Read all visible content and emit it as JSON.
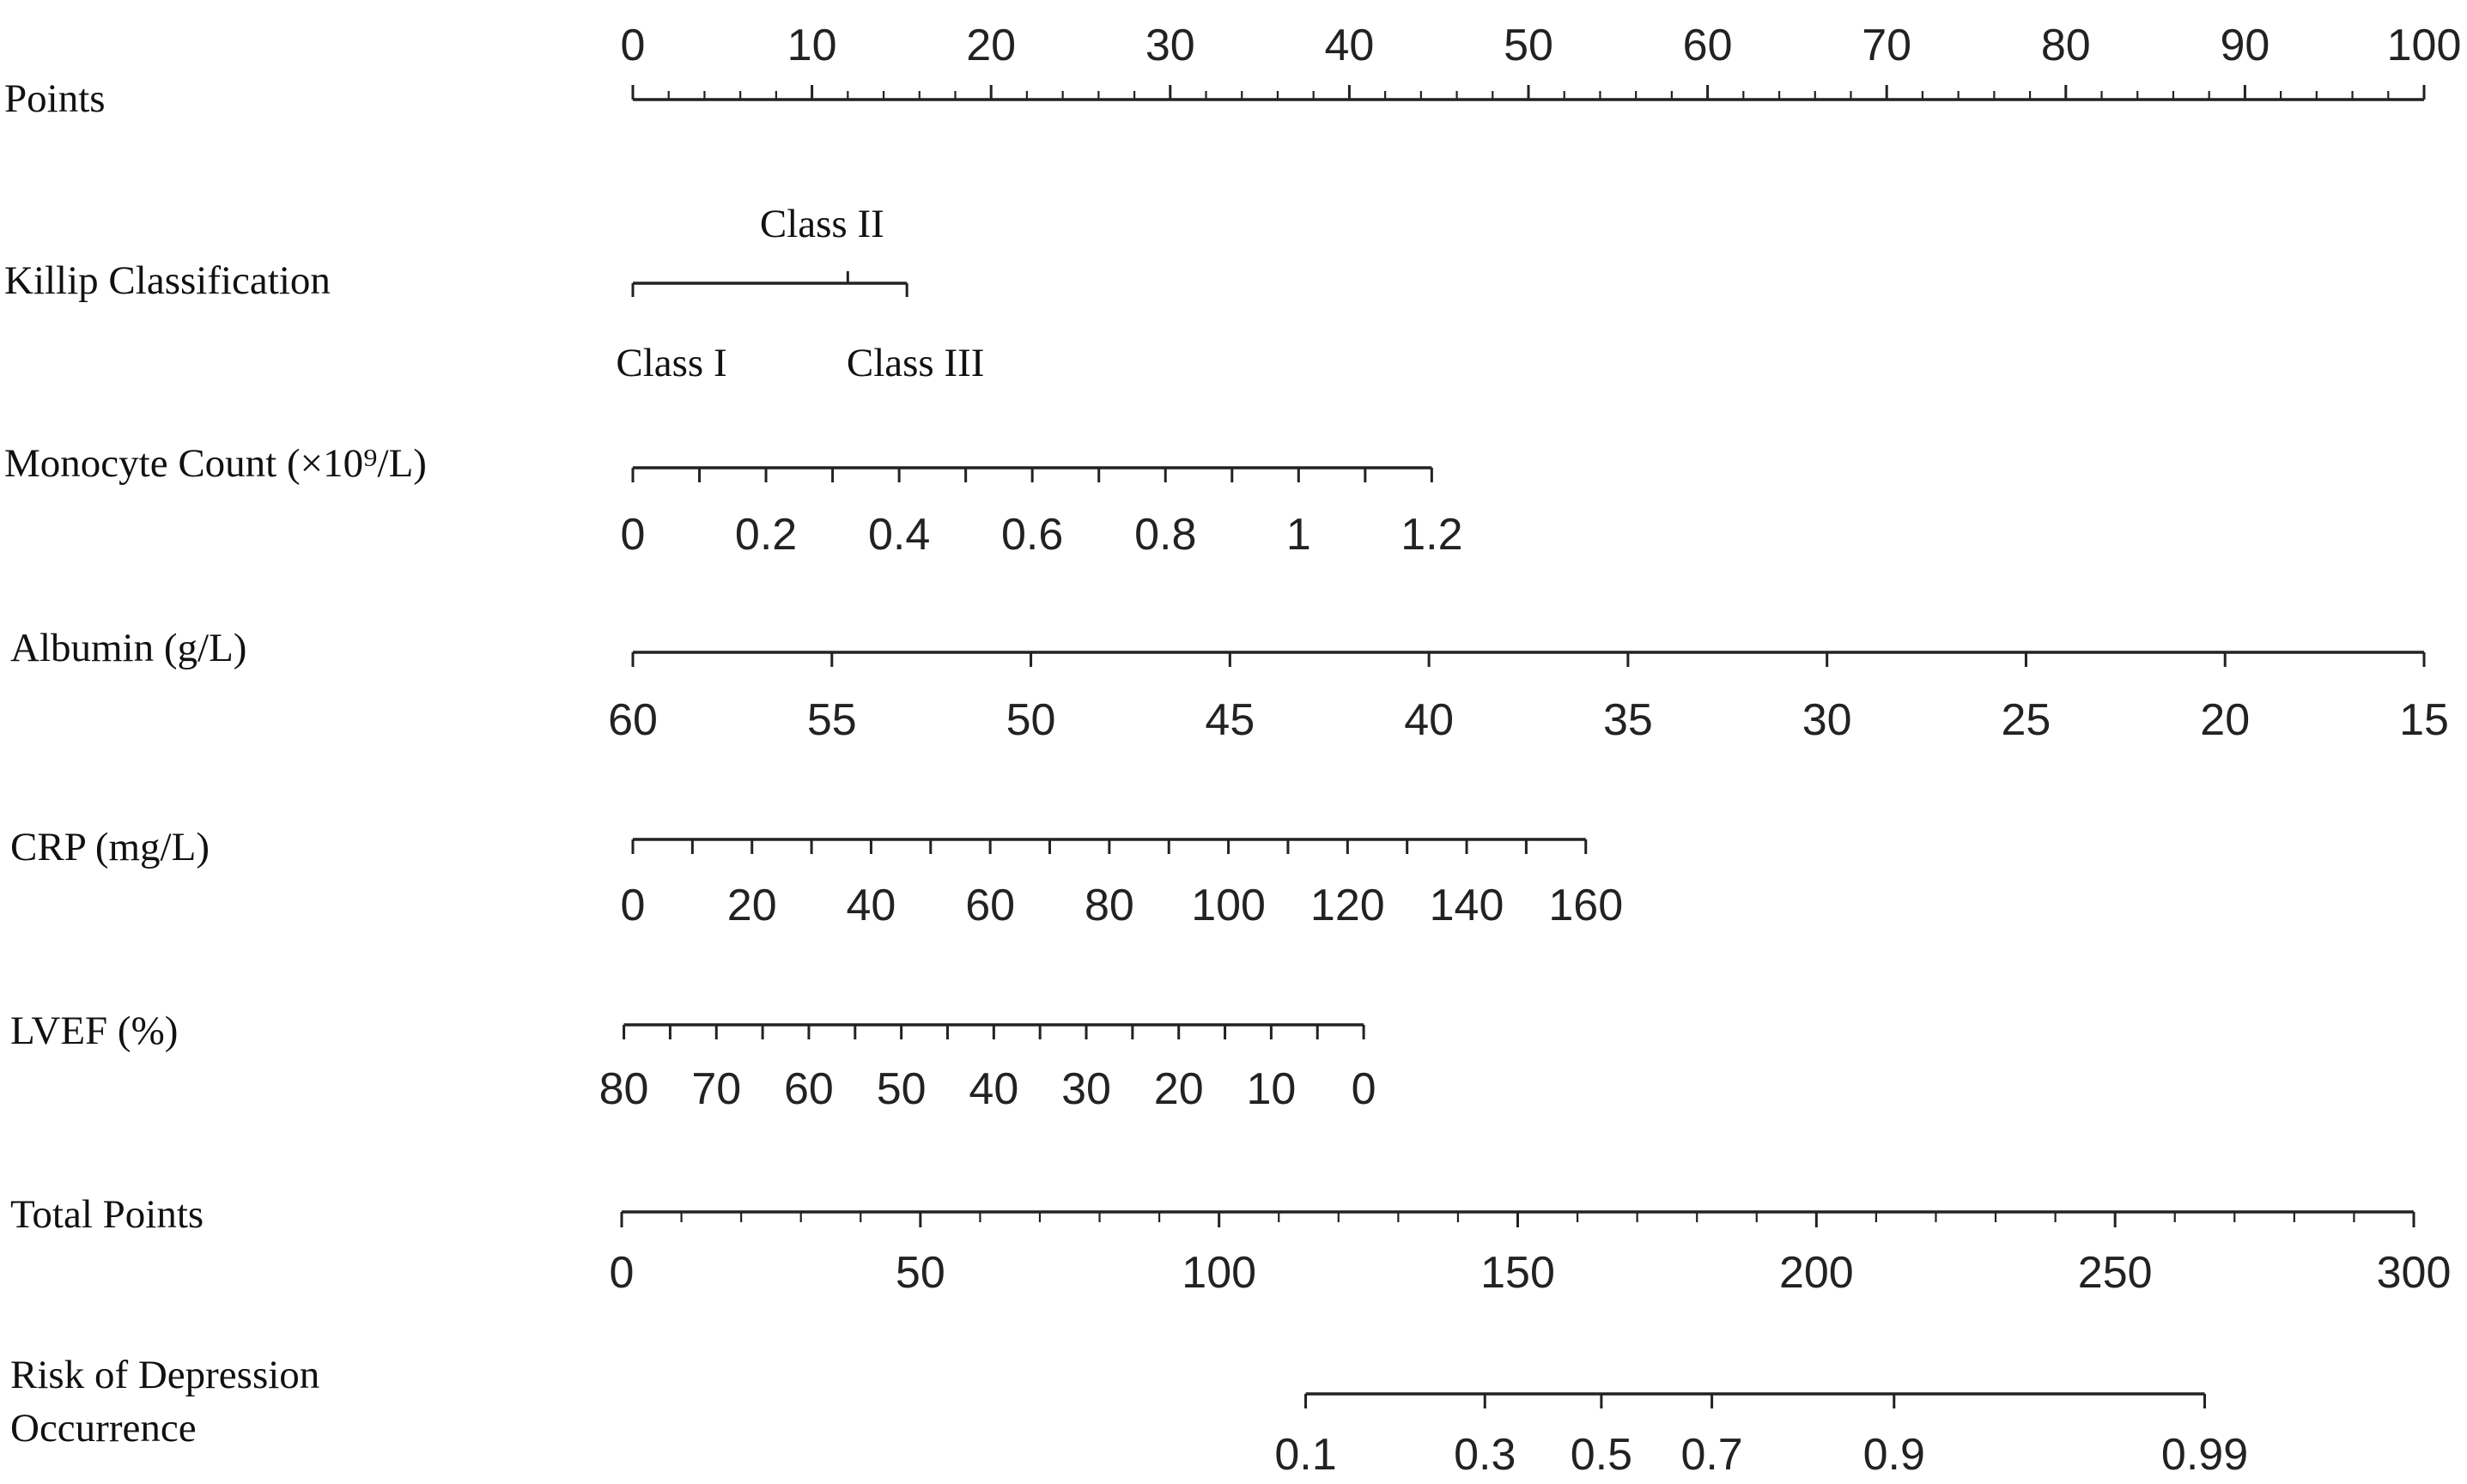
{
  "chart_data": {
    "type": "nomogram",
    "rows": [
      {
        "id": "points",
        "label": "Points",
        "ticks": [
          "0",
          "10",
          "20",
          "30",
          "40",
          "50",
          "60",
          "70",
          "80",
          "90",
          "100"
        ],
        "value_range": [
          0,
          100
        ]
      },
      {
        "id": "killip",
        "label": "Killip Classification",
        "categories": [
          {
            "label": "Class I",
            "points": 0
          },
          {
            "label": "Class II",
            "points": 12
          },
          {
            "label": "Class III",
            "points": 15.3
          }
        ]
      },
      {
        "id": "monocyte",
        "label": "Monocyte Count (×10⁹/L)",
        "ticks": [
          "0",
          "0.2",
          "0.4",
          "0.6",
          "0.8",
          "1",
          "1.2"
        ],
        "value_range": [
          0,
          1.2
        ],
        "points_range": [
          0,
          44.6
        ]
      },
      {
        "id": "albumin",
        "label": "Albumin (g/L)",
        "ticks": [
          "60",
          "55",
          "50",
          "45",
          "40",
          "35",
          "30",
          "25",
          "20",
          "15"
        ],
        "value_range": [
          60,
          15
        ],
        "points_range": [
          0,
          100
        ]
      },
      {
        "id": "crp",
        "label": "CRP (mg/L)",
        "ticks": [
          "0",
          "20",
          "40",
          "60",
          "80",
          "100",
          "120",
          "140",
          "160"
        ],
        "value_range": [
          0,
          160
        ],
        "points_range": [
          0,
          53.2
        ]
      },
      {
        "id": "lvef",
        "label": "LVEF (%)",
        "ticks": [
          "80",
          "70",
          "60",
          "50",
          "40",
          "30",
          "20",
          "10",
          "0"
        ],
        "value_range": [
          80,
          0
        ],
        "points_range": [
          -0.5,
          40.8
        ]
      },
      {
        "id": "total",
        "label": "Total Points",
        "ticks": [
          "0",
          "50",
          "100",
          "150",
          "200",
          "250",
          "300"
        ],
        "value_range": [
          0,
          300
        ]
      },
      {
        "id": "risk",
        "label": [
          "Risk of Depression",
          "Occurrence"
        ],
        "ticks": [
          "0.1",
          "0.3",
          "0.5",
          "0.7",
          "0.9",
          "0.99"
        ],
        "total_points_at_ticks": [
          114.5,
          144.5,
          164,
          182.5,
          213,
          265
        ]
      }
    ]
  }
}
